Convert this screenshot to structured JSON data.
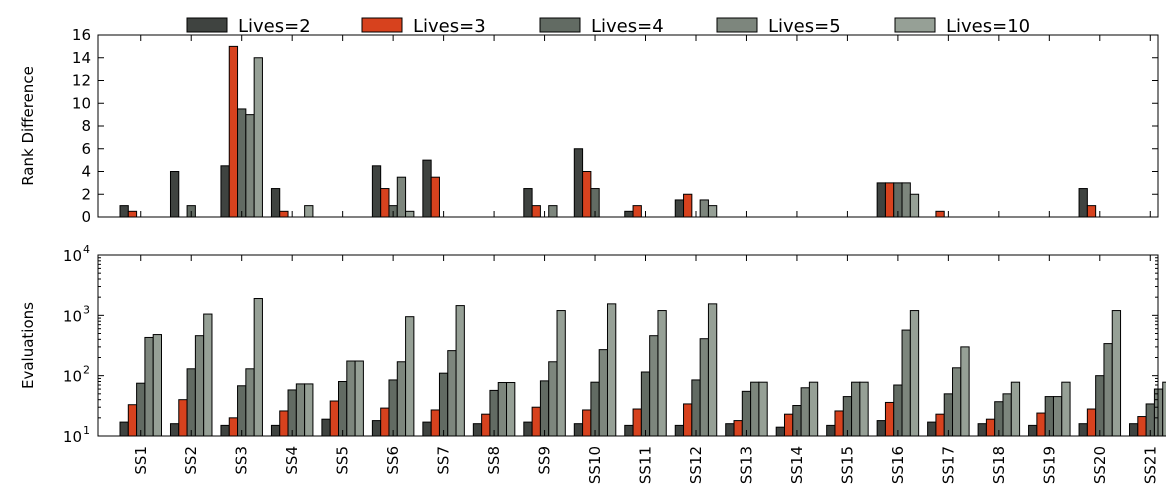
{
  "legend": [
    {
      "label": "Lives=2",
      "color": "#3f4340"
    },
    {
      "label": "Lives=3",
      "color": "#d7421e"
    },
    {
      "label": "Lives=4",
      "color": "#626b63"
    },
    {
      "label": "Lives=5",
      "color": "#7d867d"
    },
    {
      "label": "Lives=10",
      "color": "#96a096"
    }
  ],
  "chart_data": [
    {
      "type": "bar",
      "ylabel": "Rank Difference",
      "ylim": [
        0,
        16
      ],
      "yticks": [
        "0",
        "2",
        "4",
        "6",
        "8",
        "10",
        "12",
        "14",
        "16"
      ],
      "categories": [
        "SS1",
        "SS2",
        "SS3",
        "SS4",
        "SS5",
        "SS6",
        "SS7",
        "SS8",
        "SS9",
        "SS10",
        "SS11",
        "SS12",
        "SS13",
        "SS14",
        "SS15",
        "SS16",
        "SS17",
        "SS18",
        "SS19",
        "SS20",
        "SS21"
      ],
      "series": [
        {
          "name": "Lives=2",
          "values": [
            1,
            4,
            4.5,
            2.5,
            0,
            4.5,
            5,
            0,
            2.5,
            6,
            0.5,
            1.5,
            0,
            0,
            0,
            3,
            0,
            0,
            0,
            2.5,
            0
          ]
        },
        {
          "name": "Lives=3",
          "values": [
            0.5,
            0,
            15,
            0.5,
            0,
            2.5,
            3.5,
            0,
            1,
            4,
            1,
            2,
            0,
            0,
            0,
            3,
            0.5,
            0,
            0,
            1,
            0
          ]
        },
        {
          "name": "Lives=4",
          "values": [
            0,
            1,
            9.5,
            0,
            0,
            1,
            0,
            0,
            0,
            2.5,
            0,
            0,
            0,
            0,
            0,
            3,
            0,
            0,
            0,
            0,
            0
          ]
        },
        {
          "name": "Lives=5",
          "values": [
            0,
            0,
            9,
            0,
            0,
            3.5,
            0,
            0,
            1,
            0,
            0,
            1.5,
            0,
            0,
            0,
            3,
            0,
            0,
            0,
            0,
            0
          ]
        },
        {
          "name": "Lives=10",
          "values": [
            0,
            0,
            14,
            1,
            0,
            0.5,
            0,
            0,
            0,
            0,
            0,
            1,
            0,
            0,
            0,
            2,
            0,
            0,
            0,
            0,
            0
          ]
        }
      ]
    },
    {
      "type": "bar",
      "ylabel": "Evaluations",
      "yscale": "log",
      "ylim": [
        10,
        10000
      ],
      "yticks": [
        {
          "base": "10",
          "exp": "1"
        },
        {
          "base": "10",
          "exp": "2"
        },
        {
          "base": "10",
          "exp": "3"
        },
        {
          "base": "10",
          "exp": "4"
        }
      ],
      "categories": [
        "SS1",
        "SS2",
        "SS3",
        "SS4",
        "SS5",
        "SS6",
        "SS7",
        "SS8",
        "SS9",
        "SS10",
        "SS11",
        "SS12",
        "SS13",
        "SS14",
        "SS15",
        "SS16",
        "SS17",
        "SS18",
        "SS19",
        "SS20",
        "SS21"
      ],
      "series": [
        {
          "name": "Lives=2",
          "values": [
            17,
            16,
            15,
            15,
            19,
            18,
            17,
            16,
            17,
            16,
            15,
            15,
            16,
            14,
            15,
            18,
            17,
            16,
            15,
            16,
            16
          ]
        },
        {
          "name": "Lives=3",
          "values": [
            33,
            40,
            20,
            26,
            38,
            29,
            27,
            23,
            30,
            27,
            28,
            34,
            18,
            23,
            26,
            36,
            23,
            19,
            24,
            28,
            21
          ]
        },
        {
          "name": "Lives=4",
          "values": [
            75,
            130,
            68,
            58,
            80,
            85,
            110,
            57,
            82,
            78,
            115,
            85,
            55,
            32,
            45,
            70,
            50,
            37,
            45,
            100,
            34
          ]
        },
        {
          "name": "Lives=5",
          "values": [
            430,
            460,
            130,
            73,
            175,
            170,
            260,
            77,
            170,
            270,
            460,
            410,
            78,
            63,
            78,
            570,
            135,
            50,
            45,
            340,
            60
          ]
        },
        {
          "name": "Lives=10",
          "values": [
            480,
            1050,
            1900,
            73,
            175,
            950,
            1450,
            77,
            1200,
            1550,
            1200,
            1550,
            78,
            78,
            78,
            1200,
            300,
            78,
            78,
            1200,
            78
          ]
        }
      ]
    }
  ]
}
